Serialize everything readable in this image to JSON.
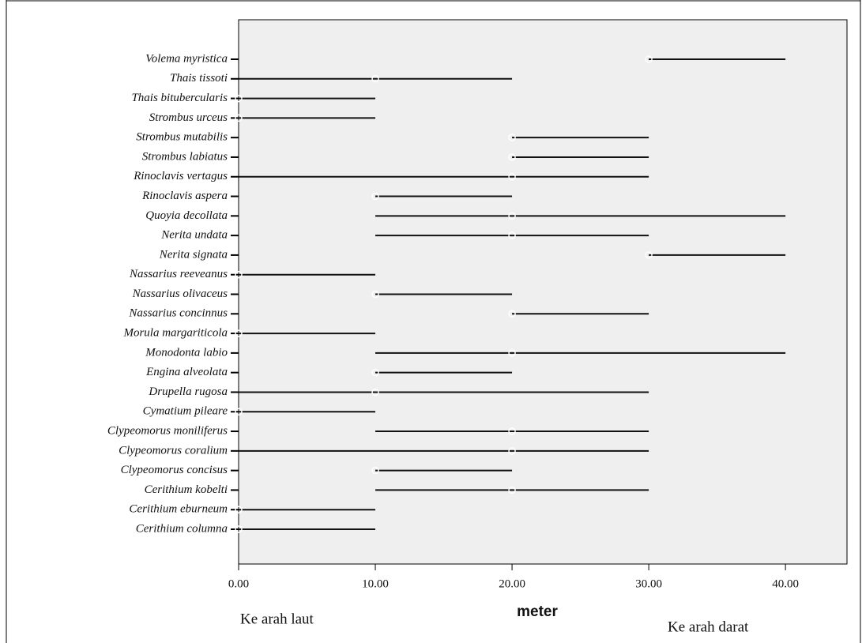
{
  "chart_data": {
    "type": "range",
    "categories": [
      "Volema myristica",
      "Thais tissoti",
      "Thais bitubercularis",
      "Strombus urceus",
      "Strombus mutabilis",
      "Strombus labiatus",
      "Rinoclavis vertagus",
      "Rinoclavis aspera",
      "Quoyia decollata",
      "Nerita undata",
      "Nerita signata",
      "Nassarius reeveanus",
      "Nassarius olivaceus",
      "Nassarius concinnus",
      "Morula margariticola",
      "Monodonta labio",
      "Engina alveolata",
      "Drupella rugosa",
      "Cymatium pileare",
      "Clypeomorus moniliferus",
      "Clypeomorus coralium",
      "Clypeomorus concisus",
      "Cerithium kobelti",
      "Cerithium eburneum",
      "Cerithium columna"
    ],
    "min": [
      30,
      0,
      0,
      0,
      20,
      20,
      0,
      10,
      10,
      10,
      30,
      0,
      10,
      20,
      0,
      10,
      10,
      0,
      0,
      10,
      0,
      10,
      10,
      0,
      0
    ],
    "max": [
      40,
      20,
      10,
      10,
      30,
      30,
      30,
      20,
      40,
      30,
      40,
      10,
      20,
      30,
      10,
      40,
      20,
      30,
      10,
      30,
      30,
      20,
      30,
      10,
      10
    ],
    "median": [
      30,
      10,
      0,
      0,
      20,
      20,
      20,
      10,
      20,
      20,
      30,
      0,
      10,
      20,
      0,
      20,
      10,
      10,
      0,
      20,
      20,
      10,
      20,
      0,
      0
    ],
    "xlim": [
      0,
      44.5
    ],
    "xticks": [
      {
        "value": 0,
        "label": "0.00"
      },
      {
        "value": 10,
        "label": "10.00"
      },
      {
        "value": 20,
        "label": "20.00"
      },
      {
        "value": 30,
        "label": "30.00"
      },
      {
        "value": 40,
        "label": "40.00"
      }
    ],
    "xlabel": "meter",
    "annotations": [
      "Ke arah laut",
      "Ke arah darat"
    ],
    "color": "#111111",
    "background": "#efefef"
  }
}
